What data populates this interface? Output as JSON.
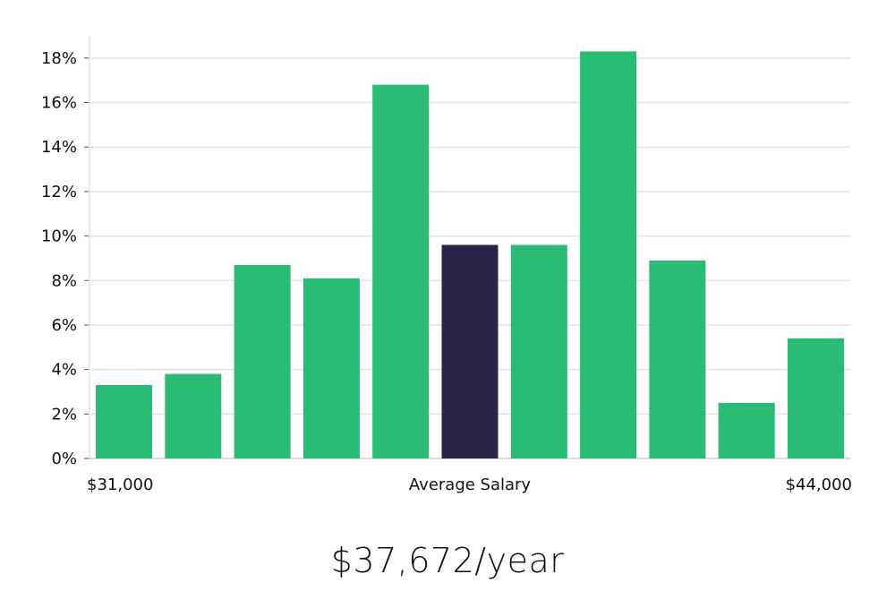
{
  "chart_data": {
    "type": "bar",
    "categories": [
      "1",
      "2",
      "3",
      "4",
      "5",
      "6",
      "7",
      "8",
      "9",
      "10",
      "11"
    ],
    "values": [
      3.3,
      3.8,
      8.7,
      8.1,
      16.8,
      9.6,
      9.6,
      18.3,
      8.9,
      2.5,
      5.4
    ],
    "highlight_index": 5,
    "ylim": [
      0,
      19
    ],
    "yticks": [
      0,
      2,
      4,
      6,
      8,
      10,
      12,
      14,
      16,
      18
    ],
    "ytick_suffix": "%",
    "grid": true,
    "x_labels": {
      "left": "$31,000",
      "center": "Average Salary",
      "right": "$44,000"
    },
    "colors": {
      "bar": "#2abb75",
      "highlight": "#282447",
      "grid": "#e3e3e3",
      "axis": "#cfcfcf"
    }
  },
  "summary": {
    "salary_text": "$37,672/year"
  }
}
